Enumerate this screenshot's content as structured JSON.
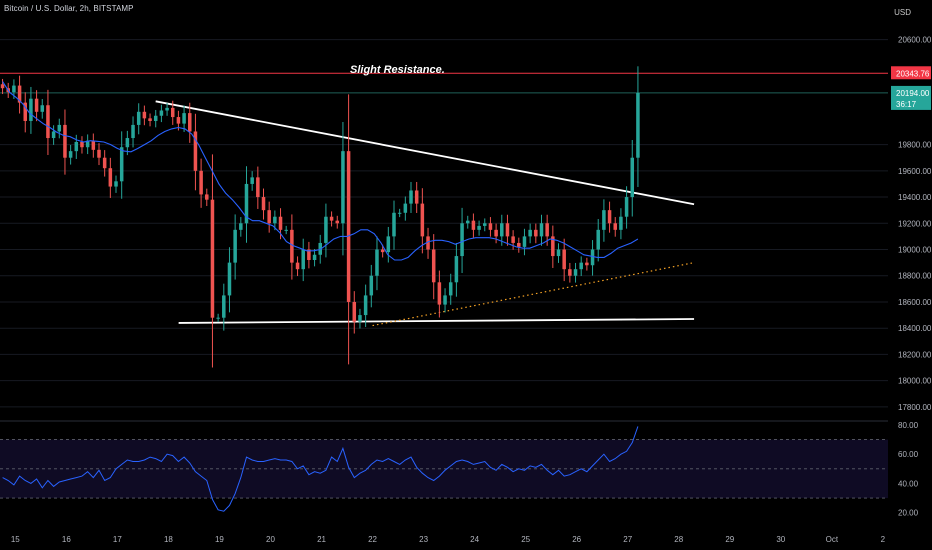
{
  "header": {
    "title": "Bitcoin / U.S. Dollar, 2h, BITSTAMP",
    "currency": "USD",
    "annotation": "Slight Resistance."
  },
  "colors": {
    "up": "#26a69a",
    "down": "#ef5350",
    "ma": "#2962ff",
    "rsi": "#2962ff",
    "resistance": "#f23645",
    "trendline": "#ffffff",
    "support": "#f7a325",
    "grid": "#171a22"
  },
  "chart_data": {
    "type": "candlestick",
    "symbol": "Bitcoin / U.S. Dollar",
    "timeframe": "2h",
    "exchange": "BITSTAMP",
    "ylim": [
      17700,
      20750
    ],
    "y_ticks": [
      "20600.00",
      "19800.00",
      "19600.00",
      "19400.00",
      "19200.00",
      "19000.00",
      "18800.00",
      "18600.00",
      "18400.00",
      "18200.00",
      "18000.00",
      "17800.00"
    ],
    "x_ticks": [
      "15",
      "16",
      "17",
      "18",
      "19",
      "20",
      "21",
      "22",
      "23",
      "24",
      "25",
      "26",
      "27",
      "28",
      "29",
      "30",
      "Oct",
      "2"
    ],
    "xlim_day": [
      14.7,
      32.1
    ],
    "candles_close": [
      20230,
      20200,
      20250,
      20120,
      19980,
      20150,
      20050,
      20100,
      19850,
      19900,
      19950,
      19700,
      19750,
      19820,
      19780,
      19830,
      19760,
      19700,
      19620,
      19480,
      19520,
      19780,
      19850,
      19950,
      20050,
      20000,
      19980,
      20020,
      20060,
      20080,
      20010,
      19960,
      20040,
      19900,
      19600,
      19420,
      19380,
      18480,
      18480,
      18650,
      18900,
      19150,
      19200,
      19500,
      19550,
      19400,
      19300,
      19200,
      19250,
      19150,
      19150,
      18900,
      18850,
      19000,
      18920,
      18960,
      19050,
      19250,
      19220,
      19200,
      19750,
      18600,
      18450,
      18500,
      18650,
      18800,
      19000,
      18980,
      19100,
      19280,
      19280,
      19350,
      19450,
      19350,
      19100,
      19000,
      18750,
      18580,
      18650,
      18750,
      18950,
      19200,
      19220,
      19150,
      19180,
      19200,
      19150,
      19100,
      19200,
      19100,
      19050,
      19020,
      19100,
      19150,
      19100,
      19200,
      19100,
      18950,
      19000,
      18850,
      18800,
      18850,
      18900,
      18880,
      19000,
      19150,
      19300,
      19200,
      19150,
      19250,
      19400,
      19700,
      20194
    ],
    "ma_close": [
      20280,
      20200,
      20160,
      20110,
      20040,
      20000,
      19960,
      19930,
      19895,
      19870,
      19860,
      19835,
      19820,
      19830,
      19825,
      19820,
      19800,
      19770,
      19750,
      19745,
      19770,
      19800,
      19830,
      19870,
      19900,
      19920,
      19930,
      19920,
      19880,
      19800,
      19700,
      19600,
      19500,
      19430,
      19380,
      19320,
      19250,
      19220,
      19220,
      19200,
      19180,
      19130,
      19060,
      19030,
      19010,
      18990,
      18990,
      19000,
      19040,
      19080,
      19100,
      19100,
      19120,
      19150,
      19150,
      19120,
      19050,
      18960,
      18920,
      18920,
      18940,
      18990,
      19030,
      19060,
      19070,
      19070,
      19060,
      19040,
      19060,
      19080,
      19090,
      19090,
      19090,
      19080,
      19060,
      19040,
      19020,
      19010,
      19010,
      19030,
      19050,
      19080,
      19070,
      19050,
      19020,
      18990,
      18960,
      18950,
      18940,
      18940,
      18970,
      19010,
      19030,
      19050,
      19080
    ],
    "resistance_level": 20343.76,
    "last_price": 20194.0,
    "last_price_label": "20194.00",
    "resistance_label": "20343.76",
    "countdown": "36:17",
    "lines": [
      {
        "name": "descending-trendline",
        "from": [
          17.75,
          20130
        ],
        "to": [
          28.3,
          19345
        ]
      },
      {
        "name": "horizontal-support",
        "from": [
          18.2,
          18440
        ],
        "to": [
          28.3,
          18470
        ]
      },
      {
        "name": "rising-support",
        "from": [
          22.0,
          18420
        ],
        "to": [
          28.3,
          18900
        ]
      }
    ],
    "rsi": {
      "y_ticks": [
        "80.00",
        "60.00",
        "40.00",
        "20.00"
      ],
      "ylim": [
        15,
        82
      ],
      "levels": [
        70,
        50,
        30
      ],
      "values": [
        44,
        42,
        39,
        45,
        42,
        40,
        43,
        37,
        42,
        38,
        41,
        42,
        43,
        44,
        45,
        48,
        44,
        49,
        42,
        44,
        50,
        53,
        56,
        55,
        55,
        56,
        58,
        57,
        55,
        60,
        59,
        55,
        58,
        54,
        48,
        45,
        42,
        29,
        22,
        21,
        25,
        33,
        44,
        58,
        56,
        55,
        55,
        56,
        57,
        56,
        56,
        55,
        50,
        52,
        46,
        48,
        47,
        49,
        58,
        55,
        64,
        51,
        44,
        47,
        49,
        53,
        56,
        55,
        57,
        55,
        53,
        56,
        58,
        51,
        47,
        44,
        42,
        45,
        49,
        52,
        55,
        56,
        55,
        53,
        54,
        55,
        51,
        49,
        53,
        51,
        48,
        50,
        49,
        52,
        51,
        53,
        49,
        46,
        49,
        45,
        46,
        48,
        50,
        48,
        52,
        56,
        60,
        55,
        57,
        60,
        62,
        68,
        79
      ]
    }
  }
}
